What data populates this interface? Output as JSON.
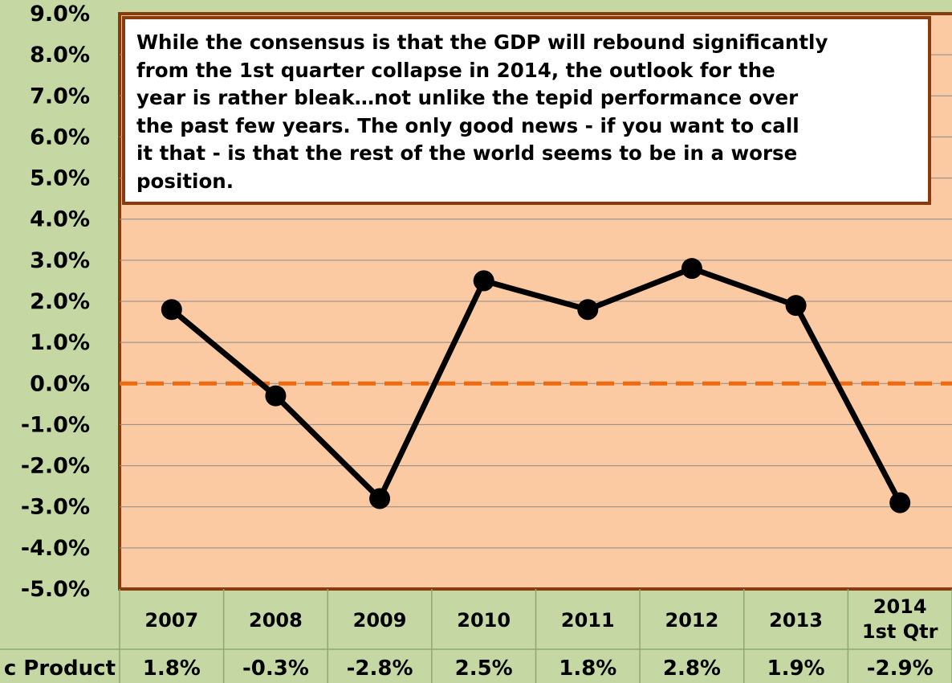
{
  "chart_data": {
    "type": "line",
    "categories": [
      "2007",
      "2008",
      "2009",
      "2010",
      "2011",
      "2012",
      "2013",
      "2014\n1st Qtr"
    ],
    "series": [
      {
        "name": "c Product",
        "values": [
          1.8,
          -0.3,
          -2.8,
          2.5,
          1.8,
          2.8,
          1.9,
          -2.9
        ],
        "labels": [
          "1.8%",
          "-0.3%",
          "-2.8%",
          "2.5%",
          "1.8%",
          "2.8%",
          "1.9%",
          "-2.9%"
        ]
      }
    ],
    "ylim": [
      -5,
      9
    ],
    "ytick_values": [
      9,
      8,
      7,
      6,
      5,
      4,
      3,
      2,
      1,
      0,
      -1,
      -2,
      -3,
      -4,
      -5
    ],
    "ytick_labels": [
      "9.0%",
      "8.0%",
      "7.0%",
      "6.0%",
      "5.0%",
      "4.0%",
      "3.0%",
      "2.0%",
      "1.0%",
      "0.0%",
      "-1.0%",
      "-2.0%",
      "-3.0%",
      "-4.0%",
      "-5.0%"
    ],
    "reference_line": {
      "value": 0,
      "style": "dashed"
    },
    "annotation": "While the consensus is that the GDP will rebound significantly\nfrom the 1st quarter collapse in 2014, the outlook for the\nyear is rather bleak…not unlike the tepid performance over\nthe past few years.  The only good news - if you want to call\nit that - is that the rest of the world seems to be in a worse\nposition.",
    "grid": true,
    "legend": "data-table-row"
  },
  "colors": {
    "page_background": "#c5d8a4",
    "plot_background": "#fbc9a2",
    "plot_border": "#8b3a0e",
    "gridline": "#8a8a8a",
    "line": "#000000",
    "marker": "#000000",
    "zero_line": "#ee6a10",
    "table_border": "#8fa872"
  }
}
